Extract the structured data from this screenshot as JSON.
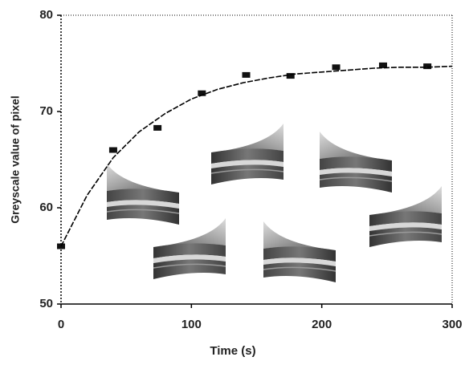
{
  "chart_data": {
    "type": "scatter",
    "x_label": "Time (s)",
    "y_label": "Greyscale value of pixel",
    "xlim": [
      0,
      300
    ],
    "ylim": [
      50,
      80
    ],
    "xticks": [
      0,
      100,
      200,
      300
    ],
    "yticks": [
      50,
      60,
      70,
      80
    ],
    "series": [
      {
        "type": "scatter",
        "color": "#111",
        "x": [
          0,
          40,
          74,
          108,
          142,
          176,
          211,
          247,
          281
        ],
        "values": [
          56,
          66,
          68.3,
          71.9,
          73.8,
          73.7,
          74.6,
          74.8,
          74.7
        ]
      },
      {
        "type": "line",
        "color": "#000",
        "x": [
          0,
          20,
          40,
          60,
          80,
          100,
          120,
          140,
          160,
          180,
          200,
          220,
          240,
          260,
          280,
          300
        ],
        "values": [
          56,
          61.3,
          65.2,
          67.9,
          69.8,
          71.3,
          72.3,
          73,
          73.5,
          73.9,
          74.1,
          74.3,
          74.5,
          74.6,
          74.6,
          74.7
        ]
      }
    ]
  }
}
